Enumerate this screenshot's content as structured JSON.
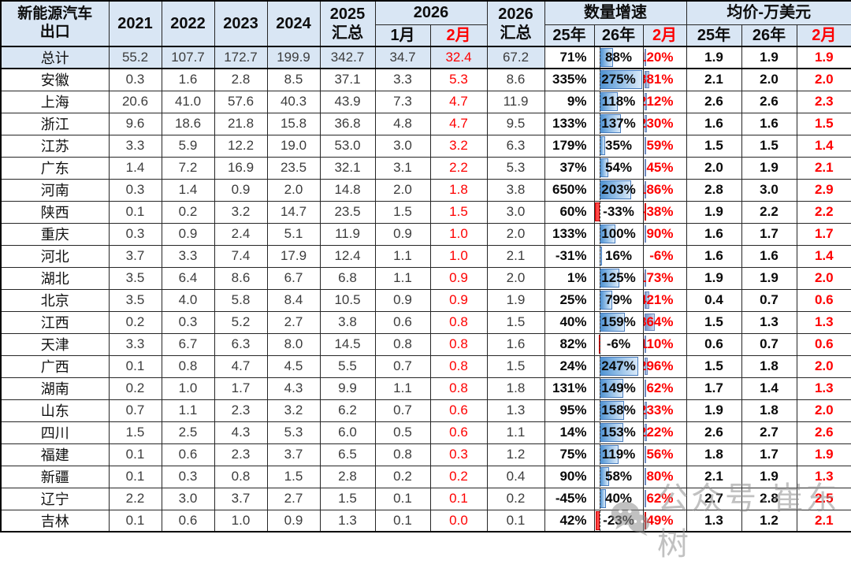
{
  "title_cell": {
    "line1": "新能源汽车",
    "line2": "出口"
  },
  "header": {
    "years": [
      "2021",
      "2022",
      "2023",
      "2024"
    ],
    "sum2025": {
      "line1": "2025",
      "line2": "汇总"
    },
    "grp2026": "2026",
    "sub2026": [
      "1月",
      "2月"
    ],
    "sum2026": {
      "line1": "2026",
      "line2": "汇总"
    },
    "growth_group": "数量增速",
    "growth_sub": [
      "25年",
      "26年",
      "2月"
    ],
    "price_group": "均价-万美元",
    "price_sub": [
      "25年",
      "26年",
      "2月"
    ]
  },
  "chart_data": {
    "type": "table",
    "title": "新能源汽车出口",
    "columns": [
      "新能源汽车出口",
      "2021",
      "2022",
      "2023",
      "2024",
      "2025汇总",
      "2026年1月",
      "2026年2月",
      "2026汇总",
      "数量增速25年",
      "数量增速26年",
      "数量增速2月",
      "均价25年",
      "均价26年",
      "均价2月"
    ],
    "rows": [
      [
        "总计",
        "55.2",
        "107.7",
        "172.7",
        "199.9",
        "342.7",
        "34.7",
        "32.4",
        "67.2",
        "71%",
        "88%",
        "120%",
        "1.9",
        "1.9",
        "1.9"
      ],
      [
        "安徽",
        "0.3",
        "1.6",
        "2.8",
        "8.5",
        "37.1",
        "3.3",
        "5.3",
        "8.6",
        "335%",
        "275%",
        "381%",
        "2.1",
        "2.0",
        "2.0"
      ],
      [
        "上海",
        "20.6",
        "41.0",
        "57.6",
        "40.3",
        "43.9",
        "7.3",
        "4.7",
        "11.9",
        "9%",
        "118%",
        "212%",
        "2.6",
        "2.6",
        "2.3"
      ],
      [
        "浙江",
        "9.6",
        "18.6",
        "21.8",
        "15.8",
        "36.8",
        "4.8",
        "4.7",
        "9.5",
        "133%",
        "137%",
        "230%",
        "1.6",
        "1.6",
        "1.5"
      ],
      [
        "江苏",
        "3.3",
        "5.9",
        "12.2",
        "19.0",
        "53.0",
        "3.0",
        "3.2",
        "6.3",
        "179%",
        "35%",
        "59%",
        "1.5",
        "1.5",
        "1.4"
      ],
      [
        "广东",
        "1.4",
        "7.2",
        "16.9",
        "23.5",
        "32.1",
        "3.1",
        "2.2",
        "5.3",
        "37%",
        "54%",
        "45%",
        "2.0",
        "1.9",
        "2.1"
      ],
      [
        "河南",
        "0.3",
        "1.4",
        "0.9",
        "2.0",
        "14.8",
        "2.0",
        "1.8",
        "3.8",
        "650%",
        "203%",
        "186%",
        "2.8",
        "3.0",
        "2.9"
      ],
      [
        "陕西",
        "0.1",
        "0.2",
        "3.2",
        "14.7",
        "23.5",
        "1.5",
        "1.5",
        "3.0",
        "60%",
        "-33%",
        "-38%",
        "1.9",
        "2.2",
        "2.2"
      ],
      [
        "重庆",
        "0.3",
        "0.9",
        "2.4",
        "5.1",
        "11.9",
        "0.9",
        "1.0",
        "2.0",
        "133%",
        "100%",
        "90%",
        "1.6",
        "1.7",
        "1.7"
      ],
      [
        "河北",
        "3.7",
        "3.3",
        "7.4",
        "17.9",
        "12.4",
        "1.1",
        "1.0",
        "2.1",
        "-31%",
        "16%",
        "-6%",
        "1.6",
        "1.6",
        "1.4"
      ],
      [
        "湖北",
        "3.5",
        "6.4",
        "8.6",
        "6.7",
        "6.8",
        "1.1",
        "0.9",
        "2.0",
        "1%",
        "125%",
        "173%",
        "1.9",
        "1.9",
        "2.0"
      ],
      [
        "北京",
        "3.5",
        "4.0",
        "5.8",
        "8.4",
        "10.5",
        "0.9",
        "0.9",
        "1.9",
        "25%",
        "79%",
        "421%",
        "0.4",
        "0.7",
        "0.6"
      ],
      [
        "江西",
        "0.2",
        "0.3",
        "5.2",
        "2.7",
        "3.8",
        "0.6",
        "0.8",
        "1.5",
        "40%",
        "159%",
        "864%",
        "1.5",
        "1.3",
        "1.3"
      ],
      [
        "天津",
        "3.3",
        "6.7",
        "6.3",
        "8.0",
        "14.5",
        "0.8",
        "0.8",
        "1.6",
        "82%",
        "-6%",
        "110%",
        "0.6",
        "0.7",
        "0.6"
      ],
      [
        "广西",
        "0.1",
        "0.8",
        "4.7",
        "4.5",
        "5.5",
        "0.7",
        "0.8",
        "1.5",
        "24%",
        "247%",
        "296%",
        "1.5",
        "1.8",
        "2.0"
      ],
      [
        "湖南",
        "0.2",
        "1.0",
        "1.7",
        "4.3",
        "9.9",
        "1.1",
        "0.8",
        "1.8",
        "131%",
        "149%",
        "62%",
        "1.7",
        "1.4",
        "1.3"
      ],
      [
        "山东",
        "0.7",
        "1.1",
        "2.3",
        "3.2",
        "6.2",
        "0.7",
        "0.6",
        "1.3",
        "95%",
        "158%",
        "233%",
        "1.9",
        "1.8",
        "2.0"
      ],
      [
        "四川",
        "1.5",
        "2.5",
        "4.3",
        "5.3",
        "6.0",
        "0.5",
        "0.6",
        "1.1",
        "14%",
        "153%",
        "222%",
        "2.6",
        "2.7",
        "2.6"
      ],
      [
        "福建",
        "0.1",
        "0.6",
        "2.3",
        "3.7",
        "6.5",
        "0.8",
        "0.3",
        "1.2",
        "75%",
        "119%",
        "56%",
        "1.8",
        "1.7",
        "1.9"
      ],
      [
        "新疆",
        "0.1",
        "0.3",
        "0.8",
        "1.5",
        "2.8",
        "0.2",
        "0.2",
        "0.4",
        "90%",
        "58%",
        "80%",
        "2.1",
        "1.9",
        "1.3"
      ],
      [
        "辽宁",
        "2.2",
        "3.0",
        "3.7",
        "2.7",
        "1.5",
        "0.1",
        "0.1",
        "0.2",
        "-45%",
        "40%",
        "62%",
        "2.7",
        "2.8",
        "2.5"
      ],
      [
        "吉林",
        "0.1",
        "0.6",
        "1.0",
        "0.9",
        "1.3",
        "0.1",
        "0.0",
        "0.1",
        "42%",
        "-23%",
        "-49%",
        "1.3",
        "1.2",
        "2.1"
      ]
    ],
    "databars": {
      "growth_26_column": {
        "min": -33,
        "max": 275,
        "style": "blue-gradient, red-negative, dashed-axis"
      },
      "growth_feb_column": {
        "scale_max": 2800,
        "style": "thin steel-blue bar at left edge"
      }
    },
    "layout_hints": {
      "total_row_highlight": "#d9e6f4",
      "header_bg": "#d9e6f4",
      "feb_columns_red": true
    }
  },
  "watermark": {
    "text": "公众号·崔东树"
  },
  "colors": {
    "header_bg": "#d9e6f4",
    "red": "#fe0000",
    "bar_fill": "#4f92d2",
    "bar_border": "#4a7ebf",
    "negative_bar": "#ff3333",
    "feb_bar": "#7492c6",
    "watermark": "#8f8f8f"
  }
}
